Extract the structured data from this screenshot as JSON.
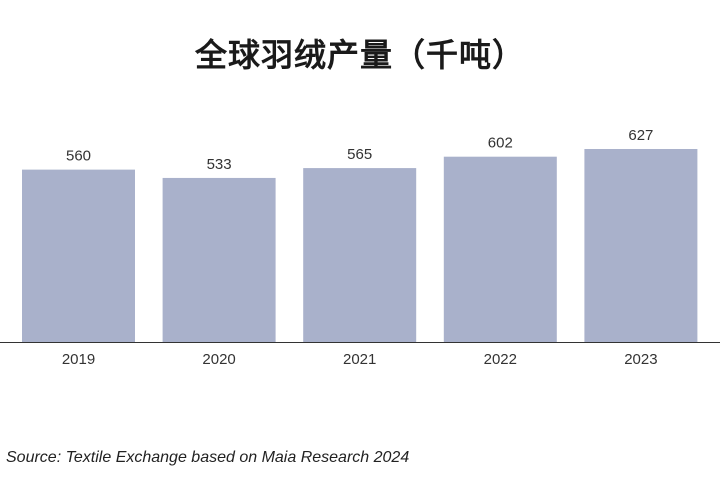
{
  "chart_data": {
    "type": "bar",
    "title": "全球羽绒产量（千吨）",
    "categories": [
      "2019",
      "2020",
      "2021",
      "2022",
      "2023"
    ],
    "values": [
      560,
      533,
      565,
      602,
      627
    ],
    "ylim": [
      0,
      627
    ],
    "grid": false,
    "legend": "none",
    "bar_color": "#a9b1cb",
    "axis_color": "#333333"
  },
  "source": "Source: Textile Exchange based on Maia Research 2024"
}
